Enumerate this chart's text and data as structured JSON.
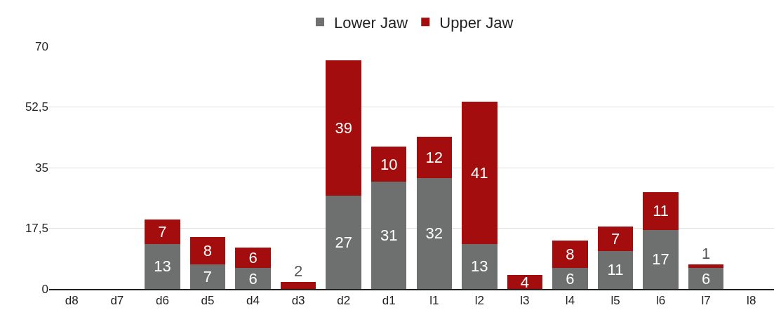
{
  "chart_data": {
    "type": "bar",
    "stacked": true,
    "categories": [
      "d8",
      "d7",
      "d6",
      "d5",
      "d4",
      "d3",
      "d2",
      "d1",
      "l1",
      "l2",
      "l3",
      "l4",
      "l5",
      "l6",
      "l7",
      "l8"
    ],
    "series": [
      {
        "name": "Lower Jaw",
        "color": "#6d706e",
        "values": [
          null,
          null,
          13,
          7,
          6,
          null,
          27,
          31,
          32,
          13,
          null,
          6,
          11,
          17,
          6,
          null
        ],
        "value_labels": [
          null,
          null,
          "13",
          "7",
          "6",
          null,
          "27",
          "31",
          "32",
          "13",
          null,
          "6",
          "11",
          "17",
          "6",
          null
        ]
      },
      {
        "name": "Upper Jaw",
        "color": "#a30d0d",
        "values": [
          null,
          null,
          7,
          8,
          6,
          2,
          39,
          10,
          12,
          41,
          4,
          8,
          7,
          11,
          1,
          null
        ],
        "value_labels": [
          null,
          null,
          "7",
          "8",
          "6",
          "2",
          "39",
          "10",
          "12",
          "41",
          "4",
          "8",
          "7",
          "11",
          "1",
          null
        ]
      }
    ],
    "ylim": [
      0,
      70
    ],
    "yticks": [
      0,
      {
        "value": 17.5,
        "label": "17,5"
      },
      35,
      {
        "value": 52.5,
        "label": "52,5"
      },
      70
    ],
    "grid": "y",
    "legend": "top"
  }
}
